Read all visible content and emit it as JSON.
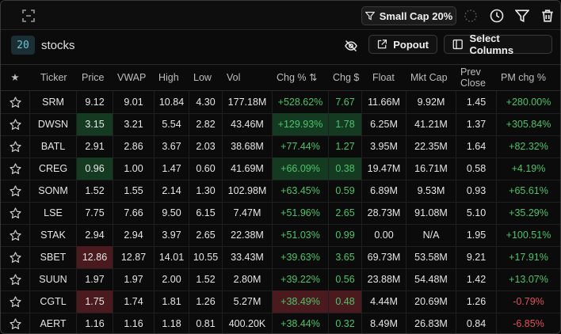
{
  "toolbar": {
    "preset_label": "Small Cap 20%"
  },
  "subbar": {
    "count": "20",
    "label": "stocks",
    "popout_label": "Popout",
    "select_columns_label": "Select Columns"
  },
  "columns": [
    {
      "key": "star",
      "label": "★"
    },
    {
      "key": "ticker",
      "label": "Ticker"
    },
    {
      "key": "price",
      "label": "Price"
    },
    {
      "key": "vwap",
      "label": "VWAP"
    },
    {
      "key": "high",
      "label": "High"
    },
    {
      "key": "low",
      "label": "Low"
    },
    {
      "key": "vol",
      "label": "Vol"
    },
    {
      "key": "chgpct",
      "label": "Chg % ⇅"
    },
    {
      "key": "chg",
      "label": "Chg $"
    },
    {
      "key": "float",
      "label": "Float"
    },
    {
      "key": "mktcap",
      "label": "Mkt Cap"
    },
    {
      "key": "prevclose",
      "label": "Prev Close"
    },
    {
      "key": "pmchg",
      "label": "PM chg %"
    }
  ],
  "rows": [
    {
      "ticker": "SRM",
      "price": "9.12",
      "vwap": "9.01",
      "high": "10.84",
      "low": "4.30",
      "vol": "177.18M",
      "chgpct": "+528.62%",
      "chg": "7.67",
      "float": "11.66M",
      "mktcap": "9.92M",
      "prevclose": "1.45",
      "pmchg": "+280.00%",
      "price_hl": "",
      "chg_hl": "",
      "pm_sign": "pos"
    },
    {
      "ticker": "DWSN",
      "price": "3.15",
      "vwap": "3.21",
      "high": "5.54",
      "low": "2.82",
      "vol": "43.46M",
      "chgpct": "+129.93%",
      "chg": "1.78",
      "float": "6.25M",
      "mktcap": "41.21M",
      "prevclose": "1.37",
      "pmchg": "+305.84%",
      "price_hl": "green",
      "chg_hl": "green",
      "pm_sign": "pos"
    },
    {
      "ticker": "BATL",
      "price": "2.91",
      "vwap": "2.86",
      "high": "3.67",
      "low": "2.03",
      "vol": "38.68M",
      "chgpct": "+77.44%",
      "chg": "1.27",
      "float": "3.95M",
      "mktcap": "22.35M",
      "prevclose": "1.64",
      "pmchg": "+82.32%",
      "price_hl": "",
      "chg_hl": "",
      "pm_sign": "pos"
    },
    {
      "ticker": "CREG",
      "price": "0.96",
      "vwap": "1.00",
      "high": "1.47",
      "low": "0.60",
      "vol": "41.69M",
      "chgpct": "+66.09%",
      "chg": "0.38",
      "float": "19.47M",
      "mktcap": "16.71M",
      "prevclose": "0.58",
      "pmchg": "+4.19%",
      "price_hl": "green",
      "chg_hl": "green",
      "pm_sign": "pos"
    },
    {
      "ticker": "SONM",
      "price": "1.52",
      "vwap": "1.55",
      "high": "2.14",
      "low": "1.30",
      "vol": "102.98M",
      "chgpct": "+63.45%",
      "chg": "0.59",
      "float": "6.89M",
      "mktcap": "9.53M",
      "prevclose": "0.93",
      "pmchg": "+65.61%",
      "price_hl": "",
      "chg_hl": "",
      "pm_sign": "pos"
    },
    {
      "ticker": "LSE",
      "price": "7.75",
      "vwap": "7.66",
      "high": "9.50",
      "low": "6.15",
      "vol": "7.47M",
      "chgpct": "+51.96%",
      "chg": "2.65",
      "float": "28.73M",
      "mktcap": "91.08M",
      "prevclose": "5.10",
      "pmchg": "+35.29%",
      "price_hl": "",
      "chg_hl": "",
      "pm_sign": "pos"
    },
    {
      "ticker": "STAK",
      "price": "2.94",
      "vwap": "2.94",
      "high": "3.97",
      "low": "2.65",
      "vol": "22.38M",
      "chgpct": "+51.03%",
      "chg": "0.99",
      "float": "0.00",
      "mktcap": "N/A",
      "prevclose": "1.95",
      "pmchg": "+100.51%",
      "price_hl": "",
      "chg_hl": "",
      "pm_sign": "pos"
    },
    {
      "ticker": "SBET",
      "price": "12.86",
      "vwap": "12.87",
      "high": "14.01",
      "low": "10.55",
      "vol": "33.43M",
      "chgpct": "+39.63%",
      "chg": "3.65",
      "float": "69.73M",
      "mktcap": "53.58M",
      "prevclose": "9.21",
      "pmchg": "+17.91%",
      "price_hl": "red",
      "chg_hl": "",
      "pm_sign": "pos"
    },
    {
      "ticker": "SUUN",
      "price": "1.97",
      "vwap": "1.97",
      "high": "2.00",
      "low": "1.52",
      "vol": "2.80M",
      "chgpct": "+39.22%",
      "chg": "0.56",
      "float": "23.88M",
      "mktcap": "54.48M",
      "prevclose": "1.42",
      "pmchg": "+13.07%",
      "price_hl": "",
      "chg_hl": "",
      "pm_sign": "pos"
    },
    {
      "ticker": "CGTL",
      "price": "1.75",
      "vwap": "1.74",
      "high": "1.81",
      "low": "1.26",
      "vol": "5.27M",
      "chgpct": "+38.49%",
      "chg": "0.48",
      "float": "4.44M",
      "mktcap": "20.69M",
      "prevclose": "1.26",
      "pmchg": "-0.79%",
      "price_hl": "red",
      "chg_hl": "red",
      "pm_sign": "neg"
    },
    {
      "ticker": "AERT",
      "price": "1.16",
      "vwap": "1.16",
      "high": "1.18",
      "low": "0.81",
      "vol": "400.20K",
      "chgpct": "+38.44%",
      "chg": "0.32",
      "float": "8.49M",
      "mktcap": "26.83M",
      "prevclose": "0.84",
      "pmchg": "-6.85%",
      "price_hl": "",
      "chg_hl": "",
      "pm_sign": "neg"
    }
  ],
  "icons": {
    "expand": "expand-icon",
    "preset": "filter-icon",
    "spinner": "loading-spinner-icon",
    "clock": "clock-icon",
    "filter": "filter-icon",
    "trash": "trash-icon",
    "hide": "eye-off-icon",
    "popout": "external-link-icon",
    "columns": "columns-icon",
    "star": "star-outline-icon"
  },
  "colors": {
    "positive": "#4cc46a",
    "negative": "#e0515a",
    "highlight_green": "#153a22",
    "highlight_red": "#4a1a1e",
    "count_badge": "#1a2e34"
  }
}
